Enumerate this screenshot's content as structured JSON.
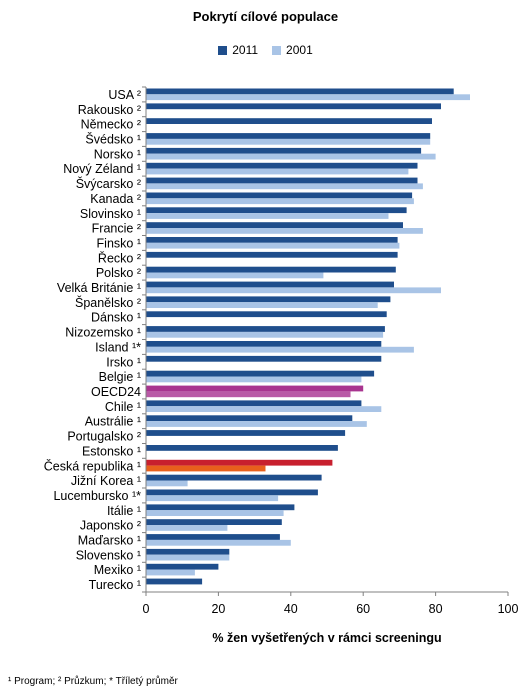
{
  "chart_data": {
    "type": "bar",
    "orientation": "horizontal",
    "title": "Pokrytí cílové populace",
    "xlabel": "% žen vyšetřených v rámci screeningu",
    "ylabel": "",
    "xlim": [
      0,
      100
    ],
    "xticks": [
      "0",
      "20",
      "40",
      "60",
      "80",
      "100"
    ],
    "grid": false,
    "legend_position": "top",
    "categories": [
      "USA ²",
      "Rakousko ²",
      "Německo ²",
      "Švédsko ¹",
      "Norsko ¹",
      "Nový Zéland ¹",
      "Švýcarsko ²",
      "Kanada ²",
      "Slovinsko ¹",
      "Francie ²",
      "Finsko ¹",
      "Řecko ²",
      "Polsko ²",
      "Velká Británie ¹",
      "Španělsko ²",
      "Dánsko ¹",
      "Nizozemsko ¹",
      "Island ¹*",
      "Irsko ¹",
      "Belgie ¹",
      "OECD24",
      "Chile ¹",
      "Austrálie ¹",
      "Portugalsko ²",
      "Estonsko ¹",
      "Česká republika ¹",
      "Jižní Korea ¹",
      "Lucembursko ¹*",
      "Itálie ¹",
      "Japonsko ²",
      "Maďarsko ¹",
      "Slovensko ¹",
      "Mexiko ¹",
      "Turecko ¹"
    ],
    "series": [
      {
        "name": "2011",
        "color": "#1f4e8c",
        "values": [
          85,
          81.5,
          79,
          78.5,
          76,
          75,
          75,
          73.5,
          72,
          71,
          69.5,
          69.5,
          69,
          68.5,
          67.5,
          66.5,
          66,
          65,
          65,
          63,
          60,
          59.5,
          57,
          55,
          53,
          51.5,
          48.5,
          47.5,
          41,
          37.5,
          37,
          23,
          20,
          15.5
        ]
      },
      {
        "name": "2001",
        "color": "#a9c4e6",
        "values": [
          89.5,
          null,
          null,
          78.5,
          80,
          72.5,
          76.5,
          74,
          67,
          76.5,
          70,
          null,
          49,
          81.5,
          64,
          null,
          65.5,
          74,
          null,
          59.5,
          56.5,
          65,
          61,
          null,
          null,
          33,
          11.5,
          36.5,
          38,
          22.5,
          40,
          23,
          13.5,
          null
        ]
      }
    ],
    "highlight": {
      "OECD24": {
        "2011": "#a8348f",
        "2001": "#b95aa6"
      },
      "Česká republika ¹": {
        "2011": "#c8202e",
        "2001": "#e8601c"
      }
    }
  },
  "footnote": "¹ Program; ² Průzkum; * Tříletý průměr"
}
